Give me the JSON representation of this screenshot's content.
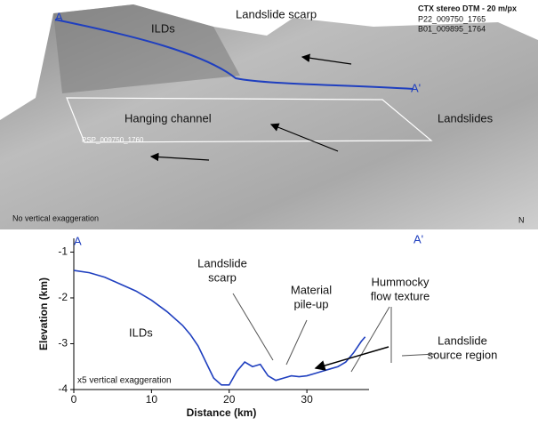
{
  "image_panel": {
    "start_label": "A",
    "end_label": "A'",
    "labels": [
      "ILDs",
      "Landslide scarp",
      "Hanging channel",
      "Landslides"
    ],
    "source_title": "CTX stereo DTM - 20 m/px",
    "source_ids": [
      "P22_009750_1765",
      "B01_009895_1764"
    ],
    "footprint_label": "PSP_009750_1760",
    "exaggeration_note": "No vertical exaggeration",
    "north_label": "N"
  },
  "chart_data": {
    "type": "line",
    "start_label": "A",
    "end_label": "A'",
    "xlabel": "Distance (km)",
    "ylabel": "Elevation (km)",
    "x": [
      0,
      2,
      4,
      6,
      8,
      10,
      12,
      14,
      15,
      16,
      17,
      18,
      19,
      20,
      21,
      22,
      23,
      24,
      25,
      26,
      27,
      28,
      29,
      30,
      31,
      32,
      33,
      34,
      35,
      36,
      37,
      37.5
    ],
    "series": [
      {
        "color": "#1f3fbf",
        "values": [
          -1.4,
          -1.45,
          -1.55,
          -1.7,
          -1.85,
          -2.05,
          -2.3,
          -2.6,
          -2.8,
          -3.05,
          -3.4,
          -3.75,
          -3.9,
          -3.9,
          -3.6,
          -3.4,
          -3.5,
          -3.45,
          -3.7,
          -3.8,
          -3.75,
          -3.7,
          -3.72,
          -3.7,
          -3.65,
          -3.6,
          -3.55,
          -3.5,
          -3.4,
          -3.2,
          -2.95,
          -2.85
        ]
      }
    ],
    "xlim": [
      0,
      38
    ],
    "ylim": [
      -4,
      -0.7
    ],
    "xticks": [
      0,
      10,
      20,
      30
    ],
    "yticks": [
      -4,
      -3,
      -2,
      -1
    ],
    "annotations": [
      {
        "lines": [
          "Landslide",
          "scarp"
        ]
      },
      {
        "lines": [
          "Material",
          "pile-up"
        ]
      },
      {
        "lines": [
          "Hummocky",
          "flow texture"
        ]
      },
      {
        "lines": [
          "Landslide",
          "source region"
        ]
      },
      {
        "lines": [
          "ILDs"
        ]
      },
      {
        "lines": [
          "x5 vertical exaggeration"
        ]
      }
    ]
  }
}
